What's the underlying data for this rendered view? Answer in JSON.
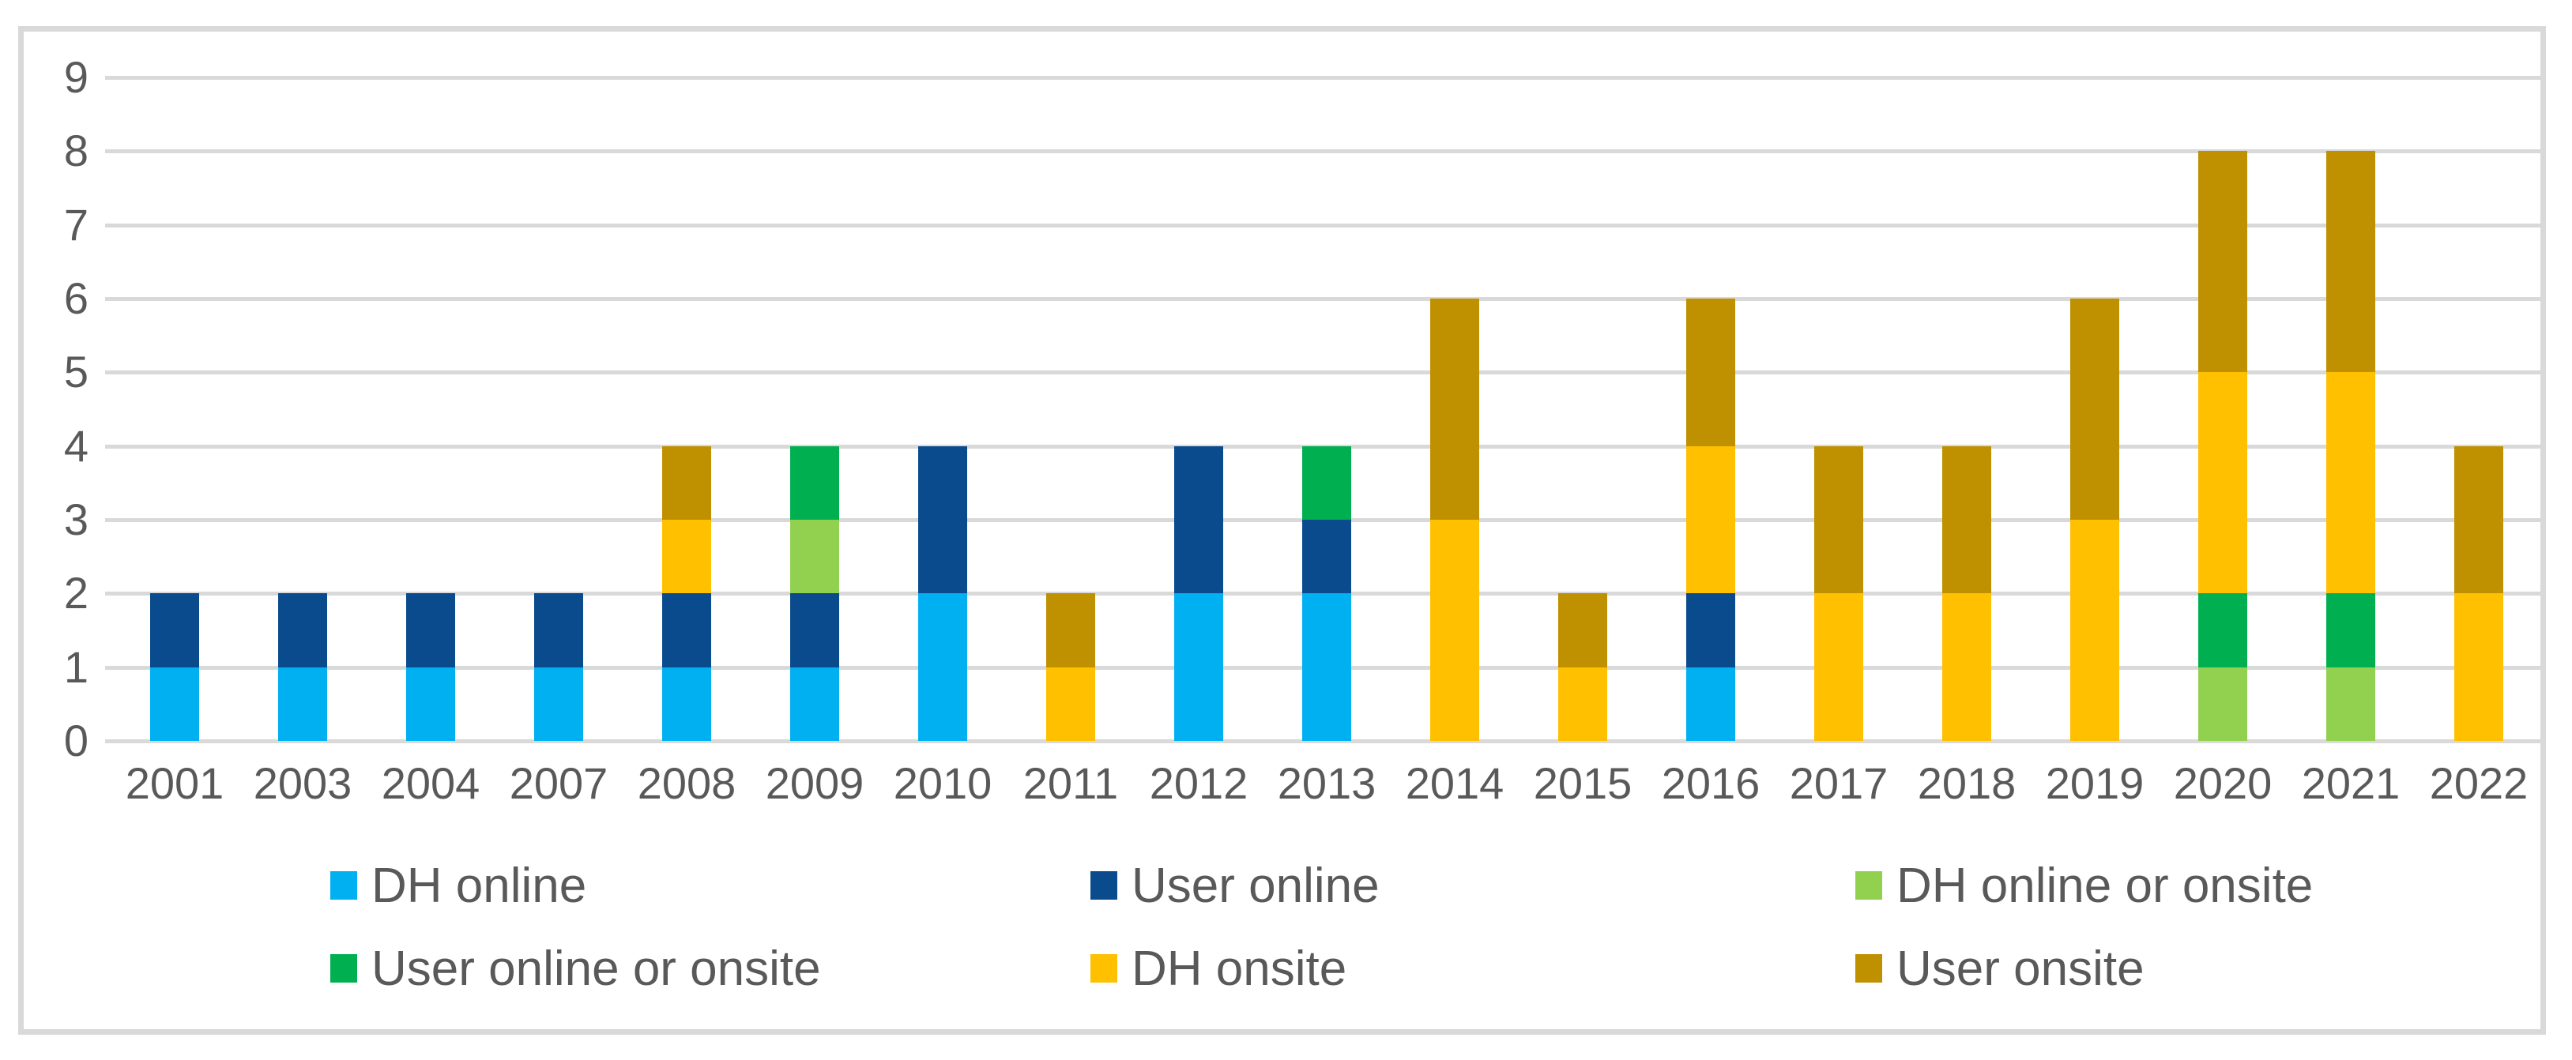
{
  "chart_data": {
    "type": "bar",
    "stacked": true,
    "title": "",
    "xlabel": "",
    "ylabel": "",
    "categories": [
      "2001",
      "2003",
      "2004",
      "2007",
      "2008",
      "2009",
      "2010",
      "2011",
      "2012",
      "2013",
      "2014",
      "2015",
      "2016",
      "2017",
      "2018",
      "2019",
      "2020",
      "2021",
      "2022"
    ],
    "series": [
      {
        "name": "DH online",
        "color": "#00B0F0",
        "values": [
          1,
          1,
          1,
          1,
          1,
          1,
          2,
          0,
          2,
          2,
          0,
          0,
          1,
          0,
          0,
          0,
          0,
          0,
          0
        ]
      },
      {
        "name": "User online",
        "color": "#0A4B8D",
        "values": [
          1,
          1,
          1,
          1,
          1,
          1,
          2,
          0,
          2,
          1,
          0,
          0,
          1,
          0,
          0,
          0,
          0,
          0,
          0
        ]
      },
      {
        "name": "DH online or onsite",
        "color": "#92D050",
        "values": [
          0,
          0,
          0,
          0,
          0,
          1,
          0,
          0,
          0,
          0,
          0,
          0,
          0,
          0,
          0,
          0,
          1,
          1,
          0
        ]
      },
      {
        "name": "User online or onsite",
        "color": "#00B050",
        "values": [
          0,
          0,
          0,
          0,
          0,
          1,
          0,
          0,
          0,
          1,
          0,
          0,
          0,
          0,
          0,
          0,
          1,
          1,
          0
        ]
      },
      {
        "name": "DH onsite",
        "color": "#FFC000",
        "values": [
          0,
          0,
          0,
          0,
          1,
          0,
          0,
          1,
          0,
          0,
          3,
          1,
          2,
          2,
          2,
          3,
          3,
          3,
          2
        ]
      },
      {
        "name": "User onsite",
        "color": "#BF9000",
        "values": [
          0,
          0,
          0,
          0,
          1,
          0,
          0,
          1,
          0,
          0,
          3,
          1,
          2,
          2,
          2,
          3,
          3,
          3,
          2
        ]
      }
    ],
    "ylim": [
      0,
      9
    ],
    "yticks": [
      "0",
      "1",
      "2",
      "3",
      "4",
      "5",
      "6",
      "7",
      "8",
      "9"
    ],
    "grid": true,
    "legend_position": "bottom",
    "axis_text_color": "#595959",
    "gridline_color": "#D9D9D9",
    "frame_border_color": "#D9D9D9",
    "plot_background": "#FFFFFF"
  }
}
